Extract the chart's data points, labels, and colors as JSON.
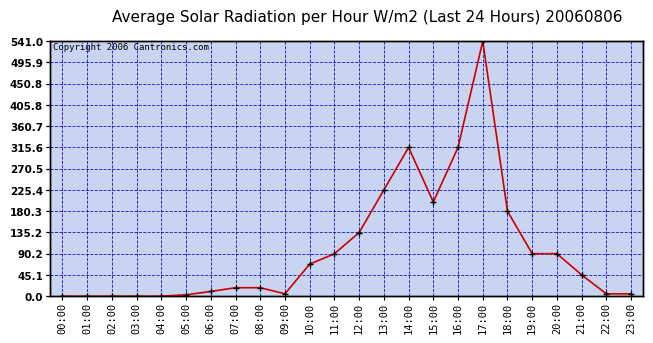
{
  "title": "Average Solar Radiation per Hour W/m2 (Last 24 Hours) 20060806",
  "copyright": "Copyright 2006 Cantronics.com",
  "hours": [
    "00:00",
    "01:00",
    "02:00",
    "03:00",
    "04:00",
    "05:00",
    "06:00",
    "07:00",
    "08:00",
    "09:00",
    "10:00",
    "11:00",
    "12:00",
    "13:00",
    "14:00",
    "15:00",
    "16:00",
    "17:00",
    "18:00",
    "19:00",
    "20:00",
    "21:00",
    "22:00",
    "23:00"
  ],
  "values": [
    0.0,
    0.0,
    0.0,
    0.0,
    0.0,
    3.0,
    10.0,
    18.0,
    18.0,
    5.0,
    68.0,
    90.0,
    135.0,
    225.4,
    315.6,
    200.0,
    315.6,
    541.0,
    180.3,
    90.2,
    90.2,
    45.1,
    5.0,
    5.0
  ],
  "line_color": "#cc0000",
  "marker_color": "#000000",
  "fig_bg_color": "#ffffff",
  "plot_bg_color": "#c8d4f0",
  "grid_color": "#0000bb",
  "border_color": "#000000",
  "ylim": [
    0.0,
    541.0
  ],
  "yticks": [
    0.0,
    45.1,
    90.2,
    135.2,
    180.3,
    225.4,
    270.5,
    315.6,
    360.7,
    405.8,
    450.8,
    495.9,
    541.0
  ],
  "ytick_labels": [
    "0.0",
    "45.1",
    "90.2",
    "135.2",
    "180.3",
    "225.4",
    "270.5",
    "315.6",
    "360.7",
    "405.8",
    "450.8",
    "495.9",
    "541.0"
  ],
  "title_fontsize": 11,
  "copyright_fontsize": 6.5,
  "tick_fontsize": 7.5
}
